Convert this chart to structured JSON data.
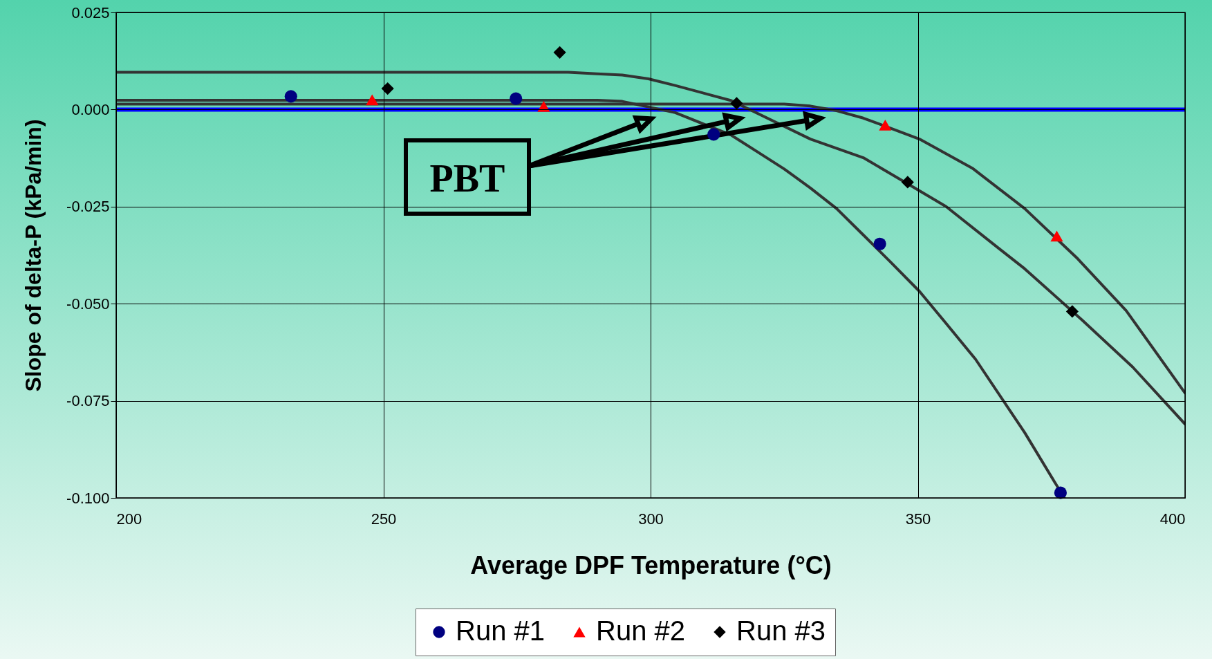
{
  "chart_data": {
    "type": "scatter",
    "xlabel": "Average DPF Temperature (°C)",
    "ylabel": "Slope of delta-P (kPa/min)",
    "xlim": [
      200,
      400
    ],
    "xticks": [
      200,
      250,
      300,
      350,
      400
    ],
    "ylim": [
      -0.1,
      0.025
    ],
    "yticks": [
      {
        "value": 0.025,
        "label": "0.025"
      },
      {
        "value": 0,
        "label": "0.000"
      },
      {
        "value": -0.025,
        "label": "-0.025"
      },
      {
        "value": -0.05,
        "label": "-0.050"
      },
      {
        "value": -0.075,
        "label": "-0.075"
      },
      {
        "value": -0.1,
        "label": "-0.100"
      }
    ],
    "grid": true,
    "legend": "bottom",
    "ref_lines": [
      {
        "axis": "y",
        "value": 0,
        "color": "#0000ff"
      }
    ],
    "annotations": [
      "PBT"
    ],
    "series": [
      {
        "name": "Run #1",
        "marker": "circle",
        "color": "#000080",
        "x": [
          232.7,
          274.8,
          311.8,
          342.9,
          376.7
        ],
        "values": [
          0.0034,
          0.0028,
          -0.0064,
          -0.0346,
          -0.0987
        ]
      },
      {
        "name": "Run #2",
        "marker": "triangle",
        "color": "#ff0000",
        "x": [
          247.9,
          280.0,
          343.9,
          376.0
        ],
        "values": [
          0.0025,
          0.0008,
          -0.004,
          -0.0326
        ]
      },
      {
        "name": "Run #3",
        "marker": "diamond",
        "color": "#000000",
        "x": [
          250.8,
          283.0,
          316.1,
          348.1,
          378.9
        ],
        "values": [
          0.0054,
          0.0147,
          0.0016,
          -0.0187,
          -0.052
        ]
      },
      {
        "type": "line",
        "marker": "none",
        "color": "#333333",
        "x": [
          200,
          290.1,
          294.7,
          304.6,
          315.1,
          320.1,
          325,
          329.9,
          334.8,
          339.8,
          344.7,
          350.3,
          355.3,
          360.8,
          370,
          377.4
        ],
        "values": [
          0.0024,
          0.0024,
          0.0021,
          -0.0008,
          -0.0066,
          -0.011,
          -0.0153,
          -0.0202,
          -0.0255,
          -0.0323,
          -0.039,
          -0.0468,
          -0.0551,
          -0.0643,
          -0.0832,
          -0.1
        ]
      },
      {
        "type": "line",
        "marker": "none",
        "color": "#333333",
        "x": [
          200,
          325,
          329.9,
          334.8,
          339.8,
          350.3,
          360.2,
          370,
          379.9,
          389,
          400
        ],
        "values": [
          0.0014,
          0.0014,
          0.0009,
          -0.0003,
          -0.0022,
          -0.0076,
          -0.0151,
          -0.0255,
          -0.0384,
          -0.0518,
          -0.073
        ]
      },
      {
        "type": "line",
        "marker": "none",
        "color": "#333333",
        "x": [
          200,
          284.6,
          290,
          294.7,
          299.6,
          304.6,
          315.1,
          329.9,
          339.8,
          348.2,
          355.3,
          365.1,
          370,
          380.8,
          390.2,
          400
        ],
        "values": [
          0.0096,
          0.0096,
          0.0092,
          0.0089,
          0.0079,
          0.0062,
          0.0023,
          -0.0076,
          -0.0124,
          -0.0192,
          -0.025,
          -0.0357,
          -0.041,
          -0.0543,
          -0.0663,
          -0.081
        ]
      }
    ]
  }
}
